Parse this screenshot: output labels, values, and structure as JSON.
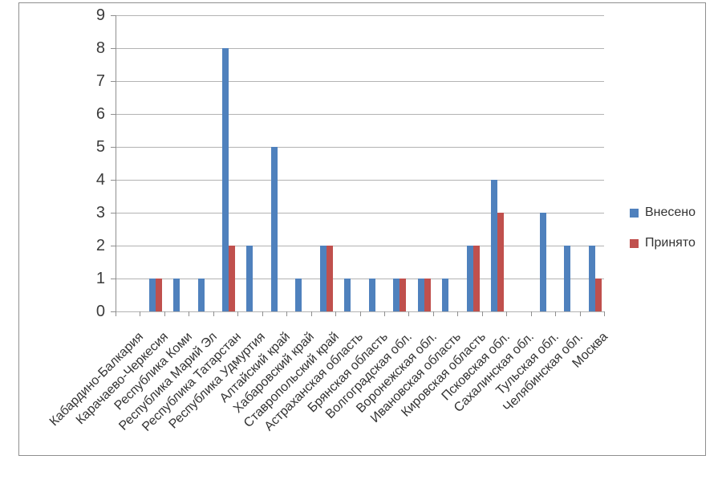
{
  "chart_data": {
    "type": "bar",
    "title": "",
    "xlabel": "",
    "ylabel": "",
    "categories": [
      "Кабардино-Балкария",
      "Карачаево-Черкесия",
      "Республика Коми",
      "Республика Марий Эл",
      "Республика Татарстан",
      "Республика Удмуртия",
      "Алтайский край",
      "Хабаровский край",
      "Ставропольский край",
      "Астраханская область",
      "Брянская область",
      "Волгоградская обл.",
      "Воронежская обл.",
      "Ивановская область",
      "Кировская область",
      "Псковская обл.",
      "Сахалинская обл.",
      "Тульская обл.",
      "Челябинская обл.",
      "Москва"
    ],
    "series": [
      {
        "name": "Внесено",
        "color": "#4F81BD",
        "values": [
          0,
          1,
          1,
          1,
          8,
          2,
          5,
          1,
          2,
          1,
          1,
          1,
          1,
          1,
          2,
          4,
          0,
          3,
          2,
          2
        ]
      },
      {
        "name": "Принято",
        "color": "#C0504D",
        "values": [
          0,
          1,
          0,
          0,
          2,
          0,
          0,
          0,
          2,
          0,
          0,
          1,
          1,
          0,
          2,
          3,
          0,
          0,
          0,
          1
        ]
      }
    ],
    "ylim": [
      0,
      9
    ],
    "y_ticks": [
      0,
      1,
      2,
      3,
      4,
      5,
      6,
      7,
      8,
      9
    ],
    "grid": "horizontal",
    "legend_position": "right"
  }
}
